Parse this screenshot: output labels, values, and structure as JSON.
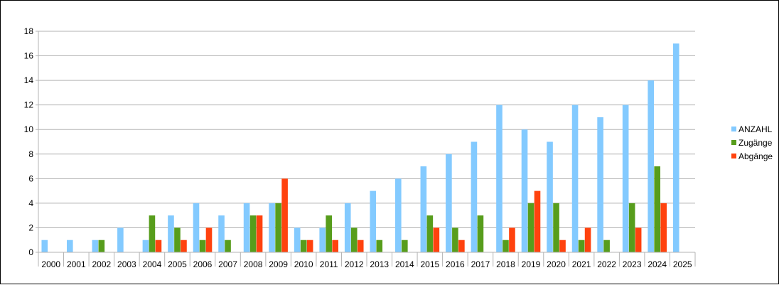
{
  "chart_data": {
    "type": "bar",
    "categories": [
      "2000",
      "2001",
      "2002",
      "2003",
      "2004",
      "2005",
      "2006",
      "2007",
      "2008",
      "2009",
      "2010",
      "2011",
      "2012",
      "2013",
      "2014",
      "2015",
      "2016",
      "2017",
      "2018",
      "2019",
      "2020",
      "2021",
      "2022",
      "2023",
      "2024",
      "2025"
    ],
    "series": [
      {
        "name": "ANZAHL",
        "color": "#83CAFF",
        "values": [
          1,
          1,
          1,
          2,
          1,
          3,
          4,
          3,
          4,
          4,
          2,
          2,
          4,
          5,
          6,
          7,
          8,
          9,
          12,
          10,
          9,
          12,
          11,
          12,
          14,
          17
        ]
      },
      {
        "name": "Zugänge",
        "color": "#579D1C",
        "values": [
          0,
          0,
          1,
          0,
          3,
          2,
          1,
          1,
          3,
          4,
          1,
          3,
          2,
          1,
          1,
          3,
          2,
          3,
          1,
          4,
          4,
          1,
          1,
          4,
          7,
          0
        ]
      },
      {
        "name": "Abgänge",
        "color": "#FF420E",
        "values": [
          0,
          0,
          0,
          0,
          1,
          1,
          2,
          0,
          3,
          6,
          1,
          1,
          1,
          0,
          0,
          2,
          1,
          0,
          2,
          5,
          1,
          2,
          0,
          2,
          4,
          0
        ]
      }
    ],
    "y_ticks": [
      "0",
      "2",
      "4",
      "6",
      "8",
      "10",
      "12",
      "14",
      "16",
      "18"
    ],
    "ylim": [
      0,
      18
    ],
    "grid": true,
    "legend": "right",
    "title": "",
    "xlabel": "",
    "ylabel": ""
  }
}
